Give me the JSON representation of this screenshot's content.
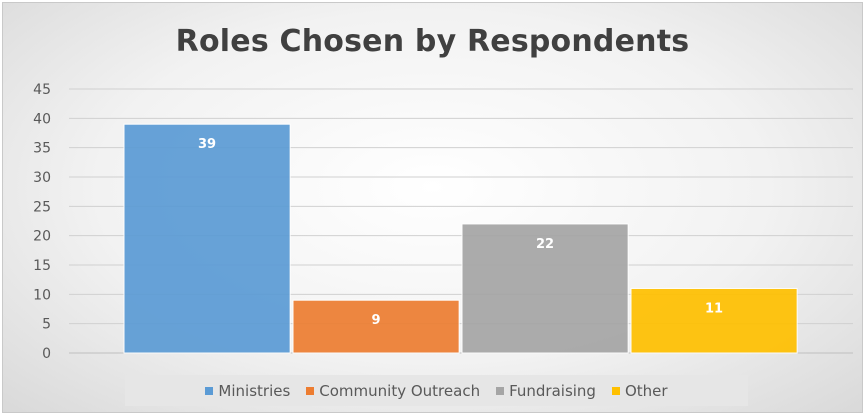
{
  "chart_data": {
    "type": "bar",
    "title": "Roles Chosen by Respondents",
    "categories": [
      "Ministries",
      "Community Outreach",
      "Fundraising",
      "Other"
    ],
    "values": [
      39,
      9,
      22,
      11
    ],
    "colors": [
      "#5b9bd5",
      "#ed7d31",
      "#a5a5a5",
      "#ffc000"
    ],
    "ylim": [
      0,
      45
    ],
    "yticks": [
      0,
      5,
      10,
      15,
      20,
      25,
      30,
      35,
      40,
      45
    ],
    "grid": true,
    "legend": "bottom",
    "xlabel": "",
    "ylabel": ""
  }
}
